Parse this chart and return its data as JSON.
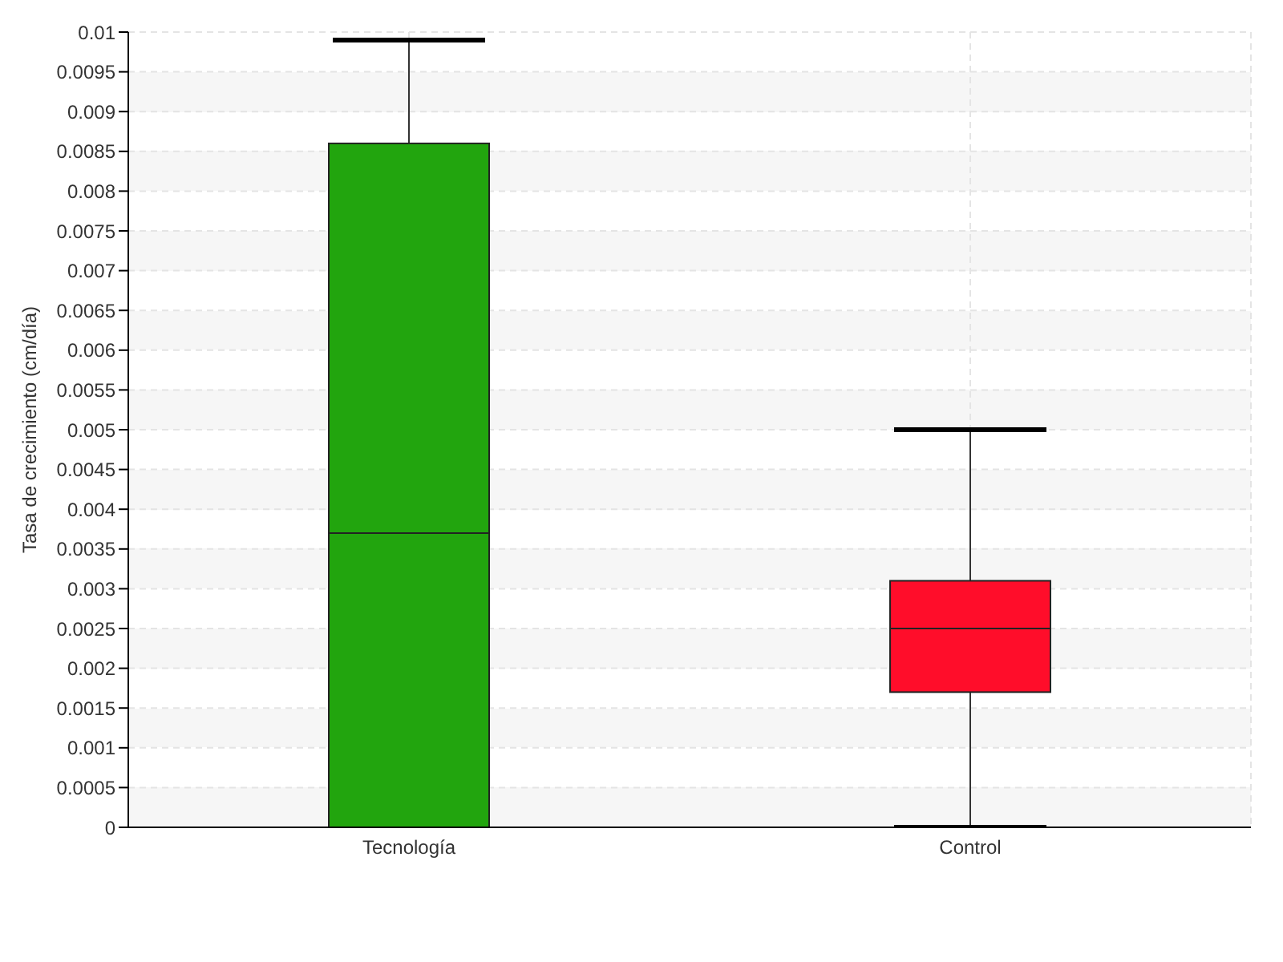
{
  "chart_data": {
    "type": "box",
    "ylabel": "Tasa de crecimiento (cm/día)",
    "categories": [
      "Tecnología",
      "Control"
    ],
    "colors": [
      "#22a50e",
      "#ff0d2a"
    ],
    "boxes": [
      {
        "low": 0,
        "q1": 0,
        "median": 0.0037,
        "q3": 0.0086,
        "high": 0.0099
      },
      {
        "low": 0,
        "q1": 0.0017,
        "median": 0.0025,
        "q3": 0.0031,
        "high": 0.005
      }
    ],
    "ylim": [
      0,
      0.01
    ],
    "yticks": [
      0,
      0.0005,
      0.001,
      0.0015,
      0.002,
      0.0025,
      0.003,
      0.0035,
      0.004,
      0.0045,
      0.005,
      0.0055,
      0.006,
      0.0065,
      0.007,
      0.0075,
      0.008,
      0.0085,
      0.009,
      0.0095,
      0.01
    ],
    "grid": true
  }
}
